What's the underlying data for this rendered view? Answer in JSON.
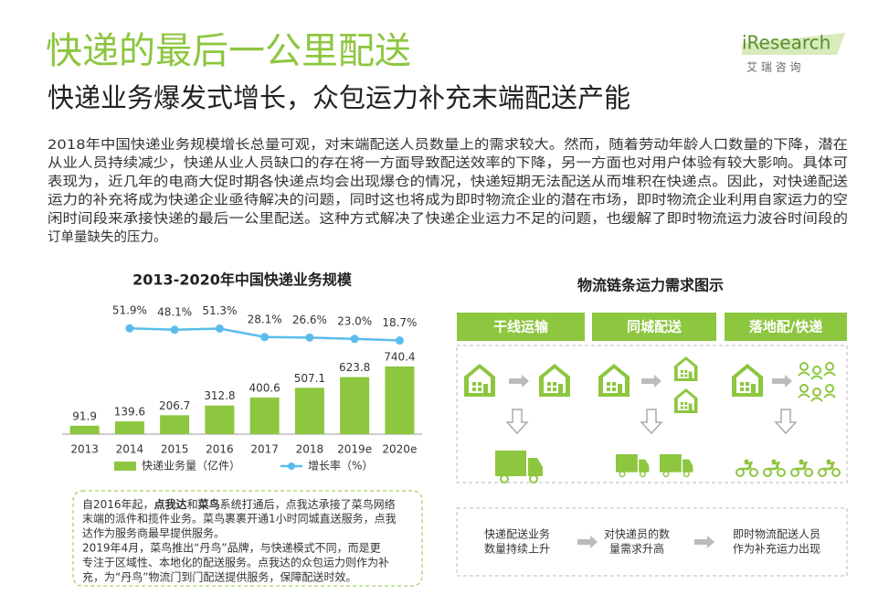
{
  "header": {
    "title": "快递的最后一公里配送",
    "subtitle": "快递业务爆发式增长，众包运力补充末端配送产能",
    "logo": "iResearch",
    "logo_sub": "艾 瑞 咨 询"
  },
  "body": {
    "lines": [
      "2018年中国快递业务规模增长总量可观，对末端配送人员数量上的需求较大。然而，随着劳动年龄人口数量的下降，潜在",
      "从业人员持续减少，快递从业人员缺口的存在将一方面导致配送效率的下降，另一方面也对用户体验有较大影响。具体可",
      "表现为，近几年的电商大促时期各快递点均会出现爆仓的情况，快递短期无法配送从而堆积在快递点。因此，对快递配送",
      "运力的补充将成为快递企业亟待解决的问题，同时这也将成为即时物流企业的潜在市场，即时物流企业利用自家运力的空",
      "闲时间段来承接快递的最后一公里配送。这种方式解决了快递企业运力不足的问题，也缓解了即时物流运力波谷时间段的",
      "订单量缺失的压力。"
    ]
  },
  "chart_data": {
    "type": "bar",
    "title": "2013-2020年中国快递业务规模",
    "categories": [
      "2013",
      "2014",
      "2015",
      "2016",
      "2017",
      "2018",
      "2019e",
      "2020e"
    ],
    "series": [
      {
        "name": "快递业务量（亿件）",
        "color": "#8dc63f",
        "values": [
          91.9,
          139.6,
          206.7,
          312.8,
          400.6,
          507.1,
          623.8,
          740.4
        ]
      },
      {
        "name": "增长率（%）",
        "type": "line",
        "axis": "y2",
        "color": "#5bbcec",
        "values": [
          null,
          51.9,
          48.1,
          51.3,
          28.1,
          26.6,
          23.0,
          18.7
        ],
        "value_labels": [
          null,
          "51.9%",
          "48.1%",
          "51.3%",
          "28.1%",
          "26.6%",
          "23.0%",
          "18.7%"
        ]
      }
    ],
    "ylim": [
      0,
      800
    ],
    "y2lim": [
      0,
      100
    ]
  },
  "note": {
    "first": [
      "自2016年起，",
      "点我达",
      "和",
      "菜鸟",
      "系统打通后，点我达承接了菜鸟网络"
    ],
    "lines": [
      "末端的派件和揽件业务。菜鸟裹裹开通1小时同城直送服务，点我",
      "达作为服务商最早提供服务。",
      "2019年4月，菜鸟推出“丹鸟”品牌，与快递模式不同，而是更",
      "专注于区域性、本地化的配送服务。点我达的众包运力则作为补",
      "充，为“丹鸟”物流门到门配送提供服务，保障配送时效。"
    ]
  },
  "diagram": {
    "title": "物流链条运力需求图示",
    "stages": [
      "干线运输",
      "同城配送",
      "落地配/快递"
    ],
    "effects": [
      [
        "快递配送业务",
        "数量持续上升"
      ],
      [
        "对快递员的数",
        "量需求升高"
      ],
      [
        "即时物流配送人员",
        "作为补充运力出现"
      ]
    ]
  }
}
